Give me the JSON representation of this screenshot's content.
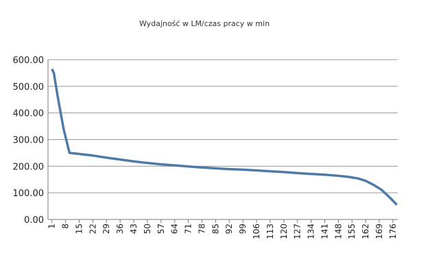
{
  "chart_data": {
    "type": "line",
    "title": "Wydajność w LM/czas pracy w min",
    "x": [
      1,
      2,
      4,
      7,
      10,
      15,
      22,
      29,
      36,
      43,
      50,
      57,
      64,
      71,
      78,
      85,
      92,
      99,
      106,
      113,
      120,
      127,
      134,
      141,
      148,
      153,
      158,
      162,
      166,
      170,
      174,
      178
    ],
    "series": [
      {
        "name": "Wydajność",
        "color": "#4f7aa8",
        "values": [
          565,
          550,
          460,
          340,
          250,
          246,
          240,
          232,
          225,
          218,
          212,
          207,
          203,
          199,
          195,
          192,
          189,
          187,
          184,
          181,
          178,
          174,
          171,
          168,
          164,
          160,
          154,
          145,
          130,
          112,
          85,
          55
        ]
      }
    ],
    "xlim": [
      -1,
      178.5
    ],
    "xticks": [
      1,
      8,
      15,
      22,
      29,
      36,
      43,
      50,
      57,
      64,
      71,
      78,
      85,
      92,
      99,
      106,
      113,
      120,
      127,
      134,
      141,
      148,
      155,
      162,
      169,
      176
    ],
    "ylim": [
      0,
      600
    ],
    "yticks": [
      {
        "value": 0,
        "label": "0.00"
      },
      {
        "value": 100,
        "label": "100.00"
      },
      {
        "value": 200,
        "label": "200.00"
      },
      {
        "value": 300,
        "label": "300.00"
      },
      {
        "value": 400,
        "label": "400.00"
      },
      {
        "value": 500,
        "label": "500.00"
      },
      {
        "value": 600,
        "label": "600.00"
      }
    ],
    "grid": true
  }
}
